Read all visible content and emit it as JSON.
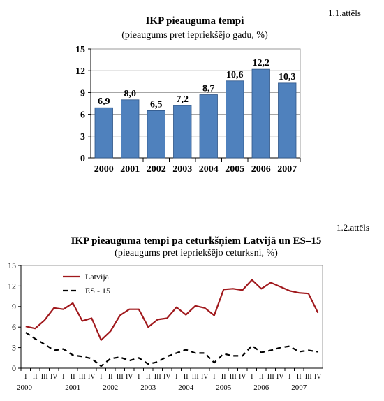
{
  "figures": [
    {
      "label": "1.1.attēls"
    },
    {
      "label": "1.2.attēls"
    }
  ],
  "chart_data": [
    {
      "type": "bar",
      "title": "IKP pieauguma tempi",
      "subtitle": "(pieaugums pret iepriekšējo gadu, %)",
      "categories": [
        "2000",
        "2001",
        "2002",
        "2003",
        "2004",
        "2005",
        "2006",
        "2007"
      ],
      "values": [
        6.9,
        8.0,
        6.5,
        7.2,
        8.7,
        10.6,
        12.2,
        10.3
      ],
      "value_labels": [
        "6,9",
        "8,0",
        "6,5",
        "7,2",
        "8,7",
        "10,6",
        "12,2",
        "10,3"
      ],
      "ylim": [
        0,
        15
      ],
      "yticks": [
        0,
        3,
        6,
        9,
        12,
        15
      ],
      "bar_color": "#4f81bd",
      "grid": true
    },
    {
      "type": "line",
      "title": "IKP pieauguma tempi pa ceturkšņiem Latvijā un ES–15",
      "subtitle": "(pieaugums pret iepriekšējo ceturksni, %)",
      "quarter_labels": [
        "I",
        "II",
        "III",
        "IV",
        "I",
        "II",
        "III",
        "IV",
        "I",
        "II",
        "III",
        "IV",
        "I",
        "II",
        "III",
        "IV",
        "I",
        "II",
        "III",
        "IV",
        "I",
        "II",
        "III",
        "IV",
        "I",
        "II",
        "III",
        "IV",
        "I",
        "II",
        "III",
        "IV"
      ],
      "year_labels": [
        "2000",
        "2001",
        "2002",
        "2003",
        "2004",
        "2005",
        "2006",
        "2007"
      ],
      "ylim": [
        0,
        15
      ],
      "yticks": [
        0,
        3,
        6,
        9,
        12,
        15
      ],
      "legend_position": "top-left",
      "series": [
        {
          "name": "Latvija",
          "color": "#a0181c",
          "style": "solid",
          "values": [
            6.1,
            5.8,
            7.0,
            8.8,
            8.6,
            9.5,
            6.9,
            7.3,
            4.1,
            5.4,
            7.7,
            8.6,
            8.6,
            6.0,
            7.1,
            7.3,
            8.9,
            7.8,
            9.1,
            8.8,
            7.7,
            11.5,
            11.6,
            11.4,
            12.9,
            11.6,
            12.5,
            11.9,
            11.3,
            11.0,
            10.9,
            8.1
          ]
        },
        {
          "name": "ES - 15",
          "color": "#000000",
          "style": "dashed",
          "values": [
            5.2,
            4.3,
            3.5,
            2.6,
            2.8,
            1.9,
            1.7,
            1.4,
            0.3,
            1.4,
            1.6,
            1.1,
            1.5,
            0.6,
            0.9,
            1.7,
            2.2,
            2.7,
            2.2,
            2.2,
            0.8,
            2.1,
            1.8,
            1.8,
            3.3,
            2.3,
            2.6,
            3.0,
            3.2,
            2.4,
            2.6,
            2.4
          ]
        }
      ]
    }
  ]
}
